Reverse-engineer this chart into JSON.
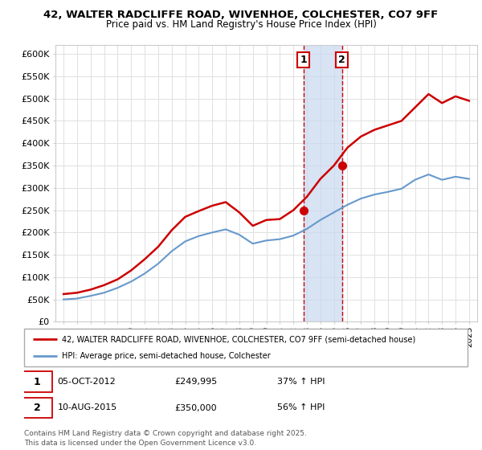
{
  "title_line1": "42, WALTER RADCLIFFE ROAD, WIVENHOE, COLCHESTER, CO7 9FF",
  "title_line2": "Price paid vs. HM Land Registry's House Price Index (HPI)",
  "ylim": [
    0,
    620000
  ],
  "yticks": [
    0,
    50000,
    100000,
    150000,
    200000,
    250000,
    300000,
    350000,
    400000,
    450000,
    500000,
    550000,
    600000
  ],
  "ytick_labels": [
    "£0",
    "£50K",
    "£100K",
    "£150K",
    "£200K",
    "£250K",
    "£300K",
    "£350K",
    "£400K",
    "£450K",
    "£500K",
    "£550K",
    "£600K"
  ],
  "background_color": "#ffffff",
  "grid_color": "#e0e0e0",
  "sale1_x": 2012.75,
  "sale1_price": 249995,
  "sale2_x": 2015.6,
  "sale2_price": 350000,
  "shade_color": "#c8d8f0",
  "red_line_color": "#cc0000",
  "blue_line_color": "#6699cc",
  "legend1_text": "42, WALTER RADCLIFFE ROAD, WIVENHOE, COLCHESTER, CO7 9FF (semi-detached house)",
  "legend2_text": "HPI: Average price, semi-detached house, Colchester",
  "footer": "Contains HM Land Registry data © Crown copyright and database right 2025.\nThis data is licensed under the Open Government Licence v3.0.",
  "x_years": [
    1995,
    1996,
    1997,
    1998,
    1999,
    2000,
    2001,
    2002,
    2003,
    2004,
    2005,
    2006,
    2007,
    2008,
    2009,
    2010,
    2011,
    2012,
    2013,
    2014,
    2015,
    2016,
    2017,
    2018,
    2019,
    2020,
    2021,
    2022,
    2023,
    2024,
    2025
  ],
  "red_values": [
    62000,
    65000,
    72000,
    82000,
    95000,
    115000,
    140000,
    168000,
    205000,
    235000,
    248000,
    260000,
    268000,
    245000,
    215000,
    228000,
    230000,
    249995,
    280000,
    320000,
    350000,
    390000,
    415000,
    430000,
    440000,
    450000,
    480000,
    510000,
    490000,
    505000,
    495000
  ],
  "blue_values": [
    50000,
    52000,
    58000,
    65000,
    76000,
    90000,
    108000,
    130000,
    158000,
    180000,
    192000,
    200000,
    207000,
    195000,
    175000,
    182000,
    185000,
    193000,
    208000,
    228000,
    245000,
    262000,
    276000,
    285000,
    291000,
    298000,
    318000,
    330000,
    318000,
    325000,
    320000
  ]
}
